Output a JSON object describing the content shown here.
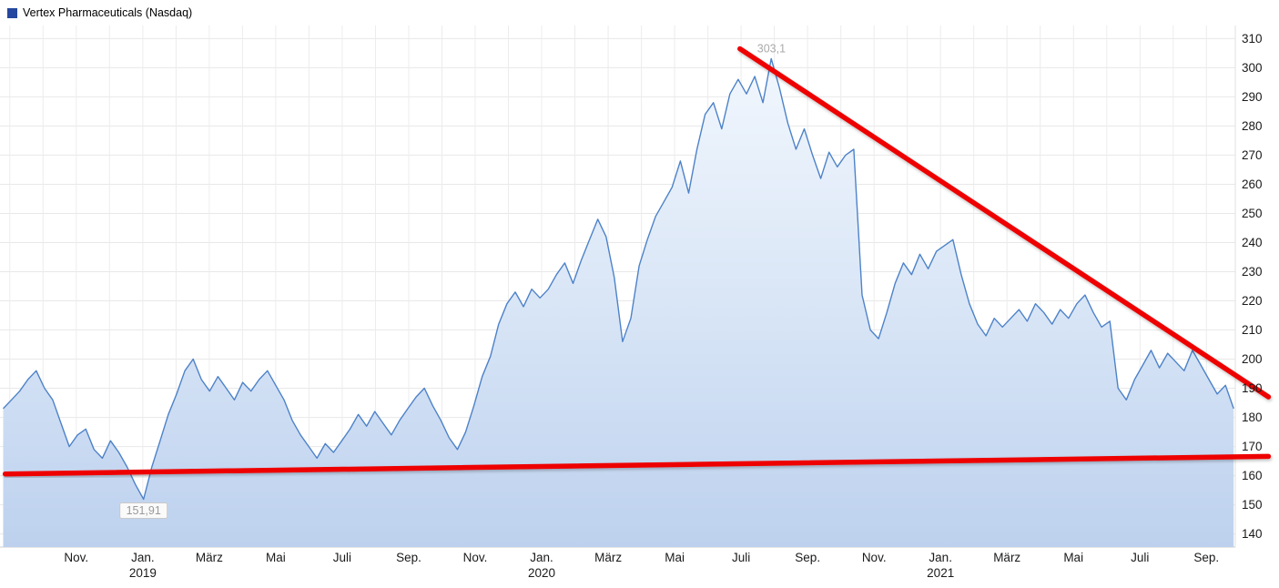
{
  "legend": {
    "label": "Vertex Pharmaceuticals (Nasdaq)",
    "marker_color": "#24479f"
  },
  "chart_data": {
    "type": "area",
    "title": "Vertex Pharmaceuticals (Nasdaq)",
    "grid": true,
    "legend_position": "top-left",
    "y_axis_side": "right",
    "xlim": [
      2018.642,
      2021.739
    ],
    "ylim": [
      135.5,
      314.5
    ],
    "x_start": 2018.65,
    "x_end": 2021.735,
    "y_ticks": [
      140,
      150,
      160,
      170,
      180,
      190,
      200,
      210,
      220,
      230,
      240,
      250,
      260,
      270,
      280,
      290,
      300,
      310
    ],
    "x_ticks": [
      {
        "x": 2018.8333,
        "label": "Nov."
      },
      {
        "x": 2019.0,
        "label": "Jan.",
        "year": "2019"
      },
      {
        "x": 2019.1667,
        "label": "März"
      },
      {
        "x": 2019.3333,
        "label": "Mai"
      },
      {
        "x": 2019.5,
        "label": "Juli"
      },
      {
        "x": 2019.6667,
        "label": "Sep."
      },
      {
        "x": 2019.8333,
        "label": "Nov."
      },
      {
        "x": 2020.0,
        "label": "Jan.",
        "year": "2020"
      },
      {
        "x": 2020.1667,
        "label": "März"
      },
      {
        "x": 2020.3333,
        "label": "Mai"
      },
      {
        "x": 2020.5,
        "label": "Juli"
      },
      {
        "x": 2020.6667,
        "label": "Sep."
      },
      {
        "x": 2020.8333,
        "label": "Nov."
      },
      {
        "x": 2021.0,
        "label": "Jan.",
        "year": "2021"
      },
      {
        "x": 2021.1667,
        "label": "März"
      },
      {
        "x": 2021.3333,
        "label": "Mai"
      },
      {
        "x": 2021.5,
        "label": "Juli"
      },
      {
        "x": 2021.6667,
        "label": "Sep."
      }
    ],
    "values": [
      183,
      186,
      189,
      193,
      196,
      190,
      186,
      178,
      170,
      174,
      176,
      169,
      166,
      172,
      168,
      163,
      157,
      151.9,
      163,
      172,
      181,
      188,
      196,
      200,
      193,
      189,
      194,
      190,
      186,
      192,
      189,
      193,
      196,
      191,
      186,
      179,
      174,
      170,
      166,
      171,
      168,
      172,
      176,
      181,
      177,
      182,
      178,
      174,
      179,
      183,
      187,
      190,
      184,
      179,
      173,
      169,
      175,
      184,
      194,
      201,
      212,
      219,
      223,
      218,
      224,
      221,
      224,
      229,
      233,
      226,
      234,
      241,
      248,
      242,
      228,
      206,
      214,
      232,
      241,
      249,
      254,
      259,
      268,
      257,
      272,
      284,
      288,
      279,
      291,
      296,
      291,
      297,
      288,
      303.1,
      293,
      281,
      272,
      279,
      270,
      262,
      271,
      266,
      270,
      272,
      222,
      210,
      207,
      216,
      226,
      233,
      229,
      236,
      231,
      237,
      239,
      241,
      229,
      219,
      212,
      208,
      214,
      211,
      214,
      217,
      213,
      219,
      216,
      212,
      217,
      214,
      219,
      222,
      216,
      211,
      213,
      190,
      186,
      193,
      198,
      203,
      197,
      202,
      199,
      196,
      203,
      198,
      193,
      188,
      191,
      183
    ],
    "line_color": "#4d82c8",
    "fill_stops": [
      {
        "offset": "0%",
        "color": "#f5f9fe"
      },
      {
        "offset": "55%",
        "color": "#d8e5f6"
      },
      {
        "offset": "100%",
        "color": "#bdd1ee"
      }
    ],
    "annotations": [
      {
        "text": "303,1",
        "x": 2020.576,
        "y": 303.1,
        "placement": "above",
        "boxed": false
      },
      {
        "text": "151,91",
        "x": 2019.002,
        "y": 151.9,
        "placement": "below",
        "boxed": true
      }
    ],
    "trendlines": [
      {
        "x1": 2020.497,
        "y1": 306.5,
        "x2": 2021.822,
        "y2": 187.0,
        "color": "#ee0202",
        "width": 5.5
      },
      {
        "x1": 2018.655,
        "y1": 160.6,
        "x2": 2021.822,
        "y2": 166.6,
        "color": "#ee0202",
        "width": 5.5
      }
    ]
  }
}
